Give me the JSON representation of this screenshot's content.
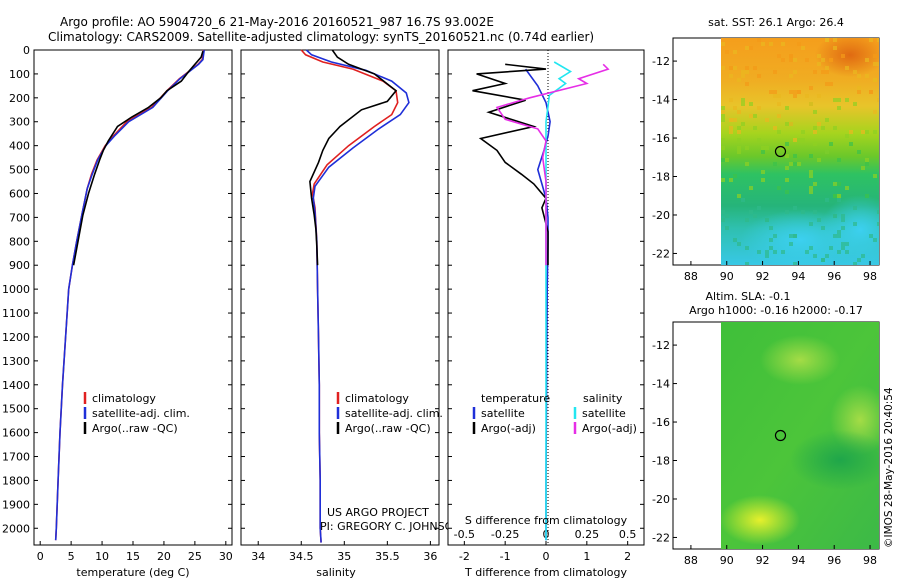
{
  "header": {
    "title_line1": "Argo profile: AO 5904720_6 21-May-2016 20160521_987 16.7S 93.002E",
    "title_line2": "Climatology: CARS2009. Satellite-adjusted climatology: synTS_20160521.nc (0.74d earlier)"
  },
  "credits": {
    "project": "US ARGO PROJECT",
    "pi": "PI: GREGORY C. JOHNSON",
    "stamp": "©IMOS 28-May-2016 20:40:54"
  },
  "colors": {
    "climatology": "#e02020",
    "satellite": "#1f2fd8",
    "argo": "#000000",
    "salinity_satellite": "#22e6f0",
    "salinity_argo": "#e62ee6",
    "sst_map_accent": "#f2a51e",
    "sla_map_accent": "#46c23c"
  },
  "chart_data": [
    {
      "type": "line",
      "panel": "temperature",
      "xlabel": "temperature (deg C)",
      "xlim": [
        -1,
        31
      ],
      "ylim": [
        2070,
        0
      ],
      "xticks": [
        "0",
        "5",
        "10",
        "15",
        "20",
        "25",
        "30"
      ],
      "yticks": [
        "0",
        "100",
        "200",
        "300",
        "400",
        "500",
        "600",
        "700",
        "800",
        "900",
        "1000",
        "1100",
        "1200",
        "1300",
        "1400",
        "1500",
        "1600",
        "1700",
        "1800",
        "1900",
        "2000"
      ],
      "legend": [
        "climatology",
        "satellite-adj. clim.",
        "Argo(..raw -QC)"
      ],
      "legend_placement": "lower-right",
      "series": [
        {
          "name": "climatology",
          "values": [
            [
              26.4,
              0
            ],
            [
              26.2,
              40
            ],
            [
              25.5,
              60
            ],
            [
              24.5,
              80
            ],
            [
              22.5,
              120
            ],
            [
              20.5,
              170
            ],
            [
              18,
              240
            ],
            [
              14,
              300
            ],
            [
              11.8,
              360
            ],
            [
              10.5,
              400
            ],
            [
              9.2,
              460
            ],
            [
              8.3,
              520
            ],
            [
              7.6,
              580
            ],
            [
              6.8,
              680
            ],
            [
              5.9,
              800
            ],
            [
              5.2,
              900
            ],
            [
              4.6,
              1000
            ],
            [
              4.1,
              1200
            ],
            [
              3.6,
              1400
            ],
            [
              3.2,
              1600
            ],
            [
              2.9,
              1800
            ],
            [
              2.6,
              2000
            ],
            [
              2.5,
              2050
            ]
          ]
        },
        {
          "name": "satellite-adj. clim.",
          "values": [
            [
              26.5,
              0
            ],
            [
              26.3,
              40
            ],
            [
              25.6,
              60
            ],
            [
              24.6,
              80
            ],
            [
              22.6,
              120
            ],
            [
              20.6,
              170
            ],
            [
              18.2,
              240
            ],
            [
              14.3,
              300
            ],
            [
              12,
              360
            ],
            [
              10.6,
              400
            ],
            [
              9.3,
              460
            ],
            [
              8.4,
              520
            ],
            [
              7.6,
              580
            ],
            [
              6.8,
              680
            ],
            [
              5.9,
              800
            ],
            [
              5.2,
              900
            ],
            [
              4.6,
              1000
            ],
            [
              4.1,
              1200
            ],
            [
              3.6,
              1400
            ],
            [
              3.2,
              1600
            ],
            [
              2.9,
              1800
            ],
            [
              2.6,
              2000
            ],
            [
              2.5,
              2050
            ]
          ]
        },
        {
          "name": "Argo(..raw -QC)",
          "values": [
            [
              26.3,
              5
            ],
            [
              26,
              30
            ],
            [
              25,
              60
            ],
            [
              24,
              90
            ],
            [
              22.8,
              130
            ],
            [
              20.5,
              170
            ],
            [
              19.5,
              200
            ],
            [
              17.5,
              240
            ],
            [
              14.8,
              280
            ],
            [
              12.5,
              320
            ],
            [
              11,
              380
            ],
            [
              10.2,
              420
            ],
            [
              9.6,
              460
            ],
            [
              8.8,
              520
            ],
            [
              7.8,
              600
            ],
            [
              6.9,
              690
            ],
            [
              6.4,
              760
            ],
            [
              5.9,
              830
            ],
            [
              5.4,
              900
            ]
          ]
        }
      ]
    },
    {
      "type": "line",
      "panel": "salinity",
      "xlabel": "salinity",
      "xlim": [
        33.8,
        36.1
      ],
      "ylim": [
        2070,
        0
      ],
      "xticks": [
        "34",
        "34.5",
        "35",
        "35.5",
        "36"
      ],
      "legend": [
        "climatology",
        "satellite-adj. clim.",
        "Argo(..raw -QC)"
      ],
      "legend_placement": "lower-right",
      "series": [
        {
          "name": "climatology",
          "values": [
            [
              34.5,
              0
            ],
            [
              34.55,
              20
            ],
            [
              34.75,
              50
            ],
            [
              35.1,
              80
            ],
            [
              35.45,
              130
            ],
            [
              35.6,
              170
            ],
            [
              35.62,
              220
            ],
            [
              35.55,
              270
            ],
            [
              35.35,
              320
            ],
            [
              35.05,
              400
            ],
            [
              34.8,
              480
            ],
            [
              34.65,
              560
            ],
            [
              34.63,
              600
            ],
            [
              34.66,
              660
            ],
            [
              34.68,
              800
            ],
            [
              34.69,
              1000
            ],
            [
              34.7,
              1200
            ],
            [
              34.71,
              1400
            ],
            [
              34.71,
              1600
            ],
            [
              34.72,
              1800
            ],
            [
              34.72,
              2000
            ],
            [
              34.73,
              2060
            ]
          ]
        },
        {
          "name": "satellite-adj. clim.",
          "values": [
            [
              34.56,
              0
            ],
            [
              34.62,
              20
            ],
            [
              34.85,
              50
            ],
            [
              35.25,
              85
            ],
            [
              35.55,
              130
            ],
            [
              35.72,
              180
            ],
            [
              35.75,
              220
            ],
            [
              35.65,
              270
            ],
            [
              35.4,
              330
            ],
            [
              35.1,
              410
            ],
            [
              34.82,
              490
            ],
            [
              34.66,
              570
            ],
            [
              34.64,
              620
            ],
            [
              34.66,
              680
            ],
            [
              34.68,
              800
            ],
            [
              34.69,
              1000
            ],
            [
              34.7,
              1200
            ],
            [
              34.71,
              1400
            ],
            [
              34.71,
              1600
            ],
            [
              34.72,
              1800
            ],
            [
              34.72,
              2000
            ],
            [
              34.73,
              2060
            ]
          ]
        },
        {
          "name": "Argo(..raw -QC)",
          "values": [
            [
              34.86,
              0
            ],
            [
              34.92,
              30
            ],
            [
              35.05,
              60
            ],
            [
              35.35,
              100
            ],
            [
              35.6,
              170
            ],
            [
              35.5,
              215
            ],
            [
              35.2,
              250
            ],
            [
              34.95,
              320
            ],
            [
              34.82,
              370
            ],
            [
              34.75,
              420
            ],
            [
              34.7,
              470
            ],
            [
              34.6,
              550
            ],
            [
              34.62,
              620
            ],
            [
              34.65,
              690
            ],
            [
              34.67,
              750
            ],
            [
              34.68,
              820
            ],
            [
              34.69,
              900
            ]
          ]
        }
      ]
    },
    {
      "type": "line",
      "panel": "difference",
      "xlabel": "T difference from climatology",
      "x2label": "S difference from climatology",
      "xlim": [
        -2.4,
        2.4
      ],
      "ylim": [
        2070,
        0
      ],
      "xticks": [
        "-2",
        "-1",
        "0",
        "1",
        "2"
      ],
      "x2ticks": [
        "-0.5",
        "-0.25",
        "0",
        "0.25",
        "0.5"
      ],
      "legend": [
        "temperature",
        "satellite",
        "Argo(-adj)",
        "salinity",
        "satellite",
        "Argo(-adj)"
      ],
      "legend_placement": "lower",
      "series": [
        {
          "name": "temperature satellite",
          "values": [
            [
              -0.5,
              80
            ],
            [
              -0.2,
              150
            ],
            [
              0,
              220
            ],
            [
              0.1,
              300
            ],
            [
              0.05,
              360
            ],
            [
              -0.05,
              420
            ],
            [
              -0.2,
              500
            ],
            [
              -0.1,
              560
            ],
            [
              0,
              620
            ],
            [
              0.05,
              700
            ],
            [
              0.05,
              800
            ],
            [
              0.03,
              1000
            ],
            [
              0.02,
              1200
            ],
            [
              0.01,
              1500
            ],
            [
              0,
              1800
            ],
            [
              0,
              2050
            ]
          ]
        },
        {
          "name": "temperature Argo(-adj)",
          "values": [
            [
              -1,
              60
            ],
            [
              0,
              80
            ],
            [
              -1.7,
              100
            ],
            [
              -1,
              140
            ],
            [
              -1.8,
              170
            ],
            [
              -0.5,
              210
            ],
            [
              -1.4,
              260
            ],
            [
              -0.3,
              320
            ],
            [
              -1.6,
              370
            ],
            [
              -1.2,
              420
            ],
            [
              -1,
              470
            ],
            [
              -0.6,
              520
            ],
            [
              -0.3,
              560
            ],
            [
              0,
              620
            ],
            [
              -0.1,
              660
            ],
            [
              0.05,
              760
            ],
            [
              0.05,
              900
            ]
          ]
        },
        {
          "name": "salinity satellite",
          "values": [
            [
              0.05,
              50
            ],
            [
              0.15,
              90
            ],
            [
              0.08,
              120
            ],
            [
              0.12,
              140
            ],
            [
              0.02,
              190
            ],
            [
              0.01,
              250
            ],
            [
              0,
              300
            ],
            [
              0,
              400
            ],
            [
              0,
              600
            ],
            [
              0,
              800
            ],
            [
              0,
              1200
            ],
            [
              0,
              1600
            ],
            [
              0,
              2050
            ]
          ]
        },
        {
          "name": "salinity Argo(-adj)",
          "values": [
            [
              0.35,
              60
            ],
            [
              0.38,
              80
            ],
            [
              0.2,
              120
            ],
            [
              0.25,
              140
            ],
            [
              -0.1,
              200
            ],
            [
              -0.3,
              240
            ],
            [
              -0.25,
              290
            ],
            [
              -0.05,
              330
            ],
            [
              0,
              380
            ],
            [
              -0.02,
              450
            ],
            [
              0,
              550
            ],
            [
              0,
              650
            ],
            [
              0,
              800
            ],
            [
              0,
              900
            ]
          ]
        }
      ]
    },
    {
      "type": "heatmap",
      "panel": "sst_map",
      "title": "sat. SST: 26.1 Argo: 26.4",
      "xlim": [
        87,
        98.5
      ],
      "ylim": [
        -22.6,
        -10.8
      ],
      "xticks": [
        "88",
        "90",
        "92",
        "94",
        "96",
        "98"
      ],
      "yticks": [
        "-12",
        "-14",
        "-16",
        "-18",
        "-20",
        "-22"
      ],
      "marker": {
        "lon": 93.0,
        "lat": -16.7
      },
      "bands": [
        {
          "lat": -11,
          "color": "#f2a51e"
        },
        {
          "lat": -13.5,
          "color": "#eac42a"
        },
        {
          "lat": -15.5,
          "color": "#9ad21e"
        },
        {
          "lat": -17.5,
          "color": "#2cc45c"
        },
        {
          "lat": -20.5,
          "color": "#3ed0c8"
        }
      ]
    },
    {
      "type": "heatmap",
      "panel": "sla_map",
      "title": "Altim. SLA: -0.1",
      "subtitle": "Argo h1000: -0.16 h2000: -0.17",
      "xlim": [
        87,
        98.5
      ],
      "ylim": [
        -22.6,
        -10.8
      ],
      "xticks": [
        "88",
        "90",
        "92",
        "94",
        "96",
        "98"
      ],
      "yticks": [
        "-12",
        "-14",
        "-16",
        "-18",
        "-20",
        "-22"
      ],
      "marker": {
        "lon": 93.0,
        "lat": -16.7
      },
      "base_color": "#46c23c"
    }
  ]
}
